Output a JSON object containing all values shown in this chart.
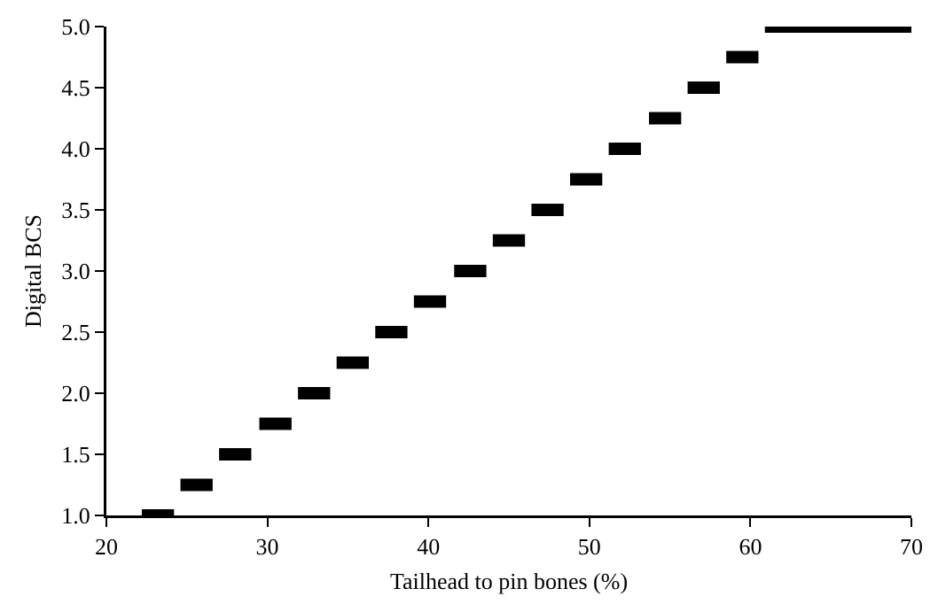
{
  "chart_data": {
    "type": "line",
    "xlabel": "Tailhead to pin bones (%)",
    "ylabel": "Digital BCS",
    "x": [
      22.2,
      24.2,
      24.4,
      24.6,
      26.6,
      26.8,
      27.0,
      29.0,
      29.2,
      29.5,
      31.5,
      31.7,
      31.9,
      33.9,
      34.1,
      34.3,
      36.3,
      36.5,
      36.7,
      38.7,
      38.9,
      39.1,
      41.1,
      41.3,
      41.6,
      43.6,
      43.8,
      44.0,
      46.0,
      46.2,
      46.4,
      48.4,
      48.6,
      48.8,
      50.8,
      51.0,
      51.2,
      53.2,
      53.4,
      53.7,
      55.7,
      55.9,
      56.1,
      58.1,
      58.3,
      58.5,
      60.5,
      60.7,
      60.9,
      70.0
    ],
    "values": [
      1.0,
      1.0,
      null,
      1.25,
      1.25,
      null,
      1.5,
      1.5,
      null,
      1.75,
      1.75,
      null,
      2.0,
      2.0,
      null,
      2.25,
      2.25,
      null,
      2.5,
      2.5,
      null,
      2.75,
      2.75,
      null,
      3.0,
      3.0,
      null,
      3.25,
      3.25,
      null,
      3.5,
      3.5,
      null,
      3.75,
      3.75,
      null,
      4.0,
      4.0,
      null,
      4.25,
      4.25,
      null,
      4.5,
      4.5,
      null,
      4.75,
      4.75,
      null,
      5.0,
      5.0
    ],
    "color": "#000000",
    "xlim": [
      20,
      70
    ],
    "xticks": [
      20,
      30,
      40,
      50,
      60,
      70
    ],
    "ylim": [
      1.0,
      5.0
    ],
    "yticks": [
      {
        "value": 1.0,
        "label": "1.0"
      },
      {
        "value": 1.5,
        "label": "1.5"
      },
      {
        "value": 2.0,
        "label": "2.0"
      },
      {
        "value": 2.5,
        "label": "2.5"
      },
      {
        "value": 3.0,
        "label": "3.0"
      },
      {
        "value": 3.5,
        "label": "3.5"
      },
      {
        "value": 4.0,
        "label": "4.0"
      },
      {
        "value": 4.5,
        "label": "4.5"
      },
      {
        "value": 5.0,
        "label": "5.0"
      }
    ],
    "grid": false,
    "marker": "none",
    "line_style": "solid"
  }
}
